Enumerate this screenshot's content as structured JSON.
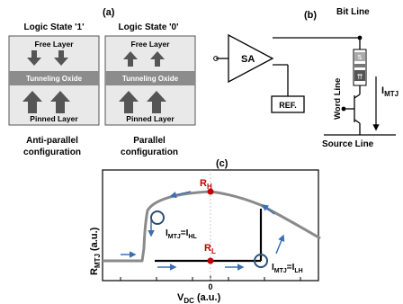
{
  "panel_a": {
    "label": "(a)",
    "state1_title": "Logic State '1'",
    "state0_title": "Logic State '0'",
    "free_layer": "Free Layer",
    "tunneling_oxide": "Tunneling Oxide",
    "pinned_layer": "Pinned Layer",
    "caption1_line1": "Anti-parallel",
    "caption1_line2": "configuration",
    "caption0_line1": "Parallel",
    "caption0_line2": "configuration"
  },
  "panel_b": {
    "label": "(b)",
    "sa": "SA",
    "ref": "REF.",
    "bit_line": "Bit Line",
    "word_line": "Word Line",
    "source_line": "Source Line",
    "current_main": "I",
    "current_sub": "MTJ"
  },
  "panel_c": {
    "label": "(c)",
    "rh_main": "R",
    "rh_sub": "H",
    "rl_main": "R",
    "rl_sub": "L",
    "ylabel_main": "R",
    "ylabel_sub": "MTJ",
    "ylabel_unit": " (a.u.)",
    "xlabel_main": "V",
    "xlabel_sub": "DC",
    "xlabel_unit": " (a.u.)",
    "x_zero": "0",
    "ihl_main": "I",
    "ihl_sub1": "MTJ",
    "ihl_eq": "=I",
    "ihl_sub2": "HL",
    "ilh_main": "I",
    "ilh_sub1": "MTJ",
    "ilh_eq": "=I",
    "ilh_sub2": "LH"
  }
}
